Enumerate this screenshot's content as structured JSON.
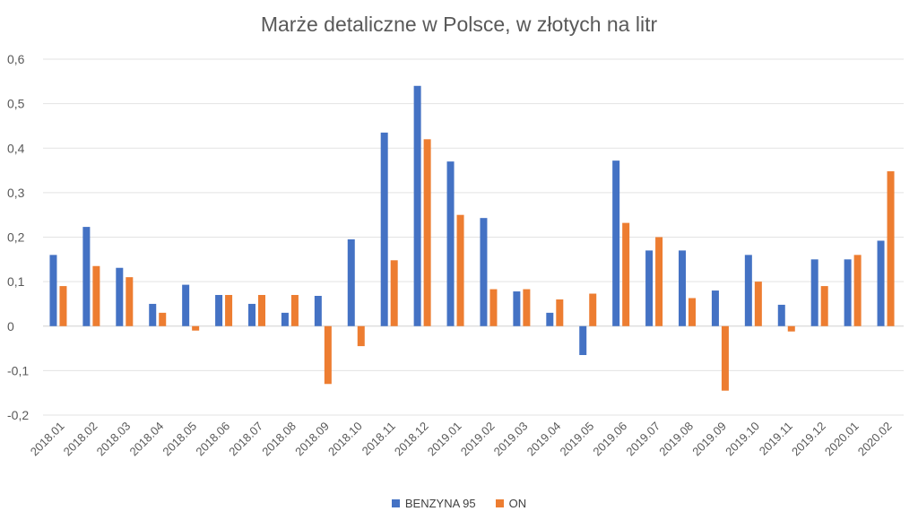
{
  "chart_data": {
    "type": "bar",
    "title": "Marże detaliczne w Polsce, w złotych na litr",
    "xlabel": "",
    "ylabel": "",
    "ylim": [
      -0.2,
      0.6
    ],
    "yticks": [
      -0.2,
      -0.1,
      0,
      0.1,
      0.2,
      0.3,
      0.4,
      0.5,
      0.6
    ],
    "ytick_labels": [
      "-0,2",
      "-0,1",
      "0",
      "0,1",
      "0,2",
      "0,3",
      "0,4",
      "0,5",
      "0,6"
    ],
    "grid": true,
    "legend_position": "bottom-center",
    "categories": [
      "2018.01",
      "2018.02",
      "2018.03",
      "2018.04",
      "2018.05",
      "2018.06",
      "2018.07",
      "2018.08",
      "2018.09",
      "2018.10",
      "2018.11",
      "2018.12",
      "2019.01",
      "2019.02",
      "2019.03",
      "2019.04",
      "2019.05",
      "2019.06",
      "2019.07",
      "2019.08",
      "2019.09",
      "2019.10",
      "2019.11",
      "2019.12",
      "2020.01",
      "2020.02"
    ],
    "series": [
      {
        "name": "BENZYNA 95",
        "color": "#4472C4",
        "values": [
          0.16,
          0.223,
          0.131,
          0.05,
          0.093,
          0.07,
          0.05,
          0.03,
          0.068,
          0.195,
          0.435,
          0.54,
          0.37,
          0.243,
          0.078,
          0.03,
          -0.065,
          0.372,
          0.17,
          0.17,
          0.08,
          0.16,
          0.048,
          0.15,
          0.15,
          0.192
        ]
      },
      {
        "name": "ON",
        "color": "#ED7D31",
        "values": [
          0.09,
          0.135,
          0.11,
          0.03,
          -0.01,
          0.07,
          0.07,
          0.07,
          -0.13,
          -0.045,
          0.148,
          0.42,
          0.25,
          0.083,
          0.083,
          0.06,
          0.073,
          0.232,
          0.2,
          0.063,
          -0.145,
          0.1,
          -0.012,
          0.09,
          0.16,
          0.348
        ]
      }
    ]
  }
}
